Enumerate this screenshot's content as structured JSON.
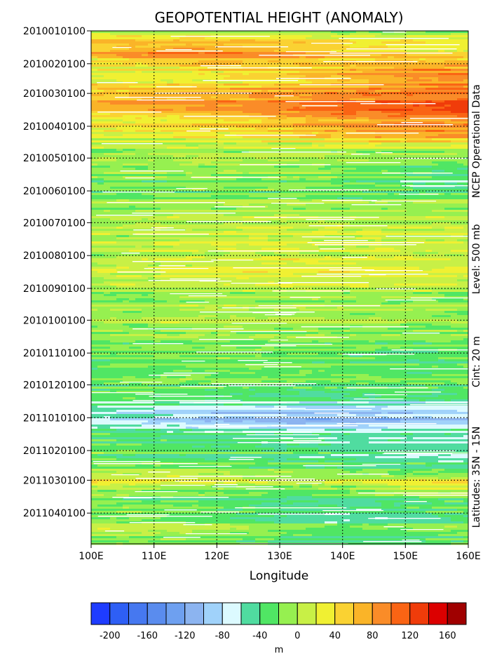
{
  "chart_data": {
    "type": "heatmap",
    "title": "GEOPOTENTIAL HEIGHT (ANOMALY)",
    "xlabel": "Longitude",
    "ylabel": "",
    "x_ticks": [
      "100E",
      "110E",
      "120E",
      "130E",
      "140E",
      "150E",
      "160E"
    ],
    "x_range": [
      100,
      160
    ],
    "y_ticks": [
      "2010010100",
      "2010020100",
      "2010030100",
      "2010040100",
      "2010050100",
      "2010060100",
      "2010070100",
      "2010080100",
      "2010090100",
      "2010100100",
      "2010110100",
      "2010120100",
      "2011010100",
      "2011020100",
      "2011030100",
      "2011040100"
    ],
    "y_range": [
      "2010010100",
      "2011043000"
    ],
    "side_labels": [
      "NCEP Operational Data",
      "Level: 500 mb",
      "Cint: 20 m",
      "Latitudes: 35N - 15N"
    ],
    "colorbar": {
      "ticks": [
        "-200",
        "-160",
        "-120",
        "-80",
        "-40",
        "0",
        "40",
        "80",
        "120",
        "160"
      ],
      "unit": "m",
      "levels": [
        -200,
        -180,
        -160,
        -140,
        -120,
        -100,
        -80,
        -60,
        -40,
        -20,
        0,
        20,
        40,
        60,
        80,
        100,
        120,
        140,
        160,
        180
      ],
      "colors": [
        "#1e3cff",
        "#2e5ff5",
        "#4678f0",
        "#5a8cee",
        "#6ea0f0",
        "#8cb4f0",
        "#a0d2fa",
        "#dcfaff",
        "#50dca0",
        "#50e664",
        "#96f050",
        "#c8f046",
        "#f0f032",
        "#fad232",
        "#fab428",
        "#fa8c28",
        "#fa6414",
        "#f03c0a",
        "#dc0000",
        "#a00000"
      ]
    },
    "rows": [
      {
        "date": "2010010100",
        "values": [
          30,
          28,
          26,
          22,
          18,
          15,
          12
        ]
      },
      {
        "date": "2010011100",
        "values": [
          60,
          68,
          70,
          62,
          50,
          42,
          38
        ]
      },
      {
        "date": "2010012100",
        "values": [
          90,
          112,
          118,
          100,
          80,
          65,
          55
        ]
      },
      {
        "date": "2010020100",
        "values": [
          50,
          66,
          75,
          72,
          72,
          88,
          95
        ]
      },
      {
        "date": "2010021100",
        "values": [
          38,
          46,
          52,
          65,
          85,
          105,
          112
        ]
      },
      {
        "date": "2010022100",
        "values": [
          62,
          66,
          66,
          74,
          92,
          102,
          108
        ]
      },
      {
        "date": "2010030100",
        "values": [
          75,
          92,
          96,
          106,
          116,
          124,
          126
        ]
      },
      {
        "date": "2010031100",
        "values": [
          90,
          95,
          102,
          110,
          122,
          132,
          135
        ]
      },
      {
        "date": "2010032100",
        "values": [
          56,
          66,
          80,
          95,
          112,
          124,
          128
        ]
      },
      {
        "date": "2010040100",
        "values": [
          50,
          55,
          62,
          72,
          90,
          105,
          102
        ]
      },
      {
        "date": "2010041100",
        "values": [
          30,
          38,
          42,
          55,
          72,
          85,
          88
        ]
      },
      {
        "date": "2010042100",
        "values": [
          20,
          22,
          25,
          30,
          32,
          35,
          30
        ]
      },
      {
        "date": "2010050100",
        "values": [
          12,
          15,
          20,
          18,
          10,
          8,
          5
        ]
      },
      {
        "date": "2010051100",
        "values": [
          5,
          8,
          12,
          8,
          0,
          -10,
          -20
        ]
      },
      {
        "date": "2010052100",
        "values": [
          0,
          5,
          8,
          2,
          -5,
          -20,
          -30
        ]
      },
      {
        "date": "2010060100",
        "values": [
          0,
          0,
          5,
          5,
          0,
          -5,
          -10
        ]
      },
      {
        "date": "2010061100",
        "values": [
          5,
          10,
          12,
          10,
          8,
          5,
          5
        ]
      },
      {
        "date": "2010062100",
        "values": [
          10,
          15,
          20,
          22,
          20,
          18,
          15
        ]
      },
      {
        "date": "2010070100",
        "values": [
          15,
          22,
          28,
          30,
          28,
          25,
          22
        ]
      },
      {
        "date": "2010071100",
        "values": [
          20,
          25,
          30,
          35,
          32,
          30,
          28
        ]
      },
      {
        "date": "2010072100",
        "values": [
          20,
          28,
          35,
          38,
          35,
          32,
          30
        ]
      },
      {
        "date": "2010080100",
        "values": [
          25,
          32,
          38,
          42,
          40,
          38,
          35
        ]
      },
      {
        "date": "2010081100",
        "values": [
          30,
          38,
          45,
          50,
          48,
          45,
          40
        ]
      },
      {
        "date": "2010082100",
        "values": [
          25,
          35,
          42,
          45,
          42,
          40,
          35
        ]
      },
      {
        "date": "2010090100",
        "values": [
          15,
          22,
          28,
          30,
          28,
          25,
          22
        ]
      },
      {
        "date": "2010091100",
        "values": [
          10,
          15,
          18,
          20,
          18,
          15,
          12
        ]
      },
      {
        "date": "2010092100",
        "values": [
          15,
          20,
          25,
          22,
          20,
          18,
          15
        ]
      },
      {
        "date": "2010100100",
        "values": [
          20,
          25,
          28,
          25,
          22,
          20,
          18
        ]
      },
      {
        "date": "2010101100",
        "values": [
          10,
          15,
          18,
          15,
          12,
          10,
          8
        ]
      },
      {
        "date": "2010102100",
        "values": [
          5,
          8,
          10,
          8,
          5,
          2,
          0
        ]
      },
      {
        "date": "2010110100",
        "values": [
          0,
          5,
          8,
          5,
          0,
          -5,
          -5
        ]
      },
      {
        "date": "2010111100",
        "values": [
          -5,
          0,
          2,
          0,
          -5,
          -10,
          -8
        ]
      },
      {
        "date": "2010112100",
        "values": [
          -10,
          -5,
          0,
          -2,
          -5,
          -8,
          -5
        ]
      },
      {
        "date": "2010120100",
        "values": [
          -5,
          -8,
          -10,
          -12,
          -15,
          -12,
          -10
        ]
      },
      {
        "date": "2010121100",
        "values": [
          -15,
          -20,
          -25,
          -28,
          -30,
          -28,
          -25
        ]
      },
      {
        "date": "2010122100",
        "values": [
          -30,
          -40,
          -50,
          -55,
          -60,
          -55,
          -50
        ]
      },
      {
        "date": "2011010100",
        "values": [
          -45,
          -60,
          -75,
          -85,
          -85,
          -80,
          -70
        ]
      },
      {
        "date": "2011011100",
        "values": [
          -20,
          -30,
          -40,
          -45,
          -45,
          -40,
          -35
        ]
      },
      {
        "date": "2011012100",
        "values": [
          -10,
          -15,
          -20,
          -25,
          -30,
          -35,
          -40
        ]
      },
      {
        "date": "2011020100",
        "values": [
          -5,
          -10,
          -15,
          -20,
          -25,
          -30,
          -35
        ]
      },
      {
        "date": "2011021100",
        "values": [
          0,
          -5,
          -10,
          -15,
          -20,
          -25,
          -30
        ]
      },
      {
        "date": "2011022100",
        "values": [
          20,
          25,
          20,
          10,
          0,
          -5,
          -10
        ]
      },
      {
        "date": "2011030100",
        "values": [
          50,
          45,
          35,
          25,
          30,
          45,
          60
        ]
      },
      {
        "date": "2011031100",
        "values": [
          15,
          10,
          5,
          0,
          10,
          25,
          40
        ]
      },
      {
        "date": "2011032100",
        "values": [
          0,
          -5,
          -10,
          -25,
          -30,
          -20,
          -10
        ]
      },
      {
        "date": "2011040100",
        "values": [
          5,
          0,
          -5,
          -20,
          -30,
          -25,
          -15
        ]
      },
      {
        "date": "2011041100",
        "values": [
          20,
          15,
          5,
          -10,
          -20,
          -15,
          0
        ]
      },
      {
        "date": "2011042100",
        "values": [
          10,
          5,
          0,
          -15,
          -25,
          -20,
          -5
        ]
      }
    ]
  }
}
